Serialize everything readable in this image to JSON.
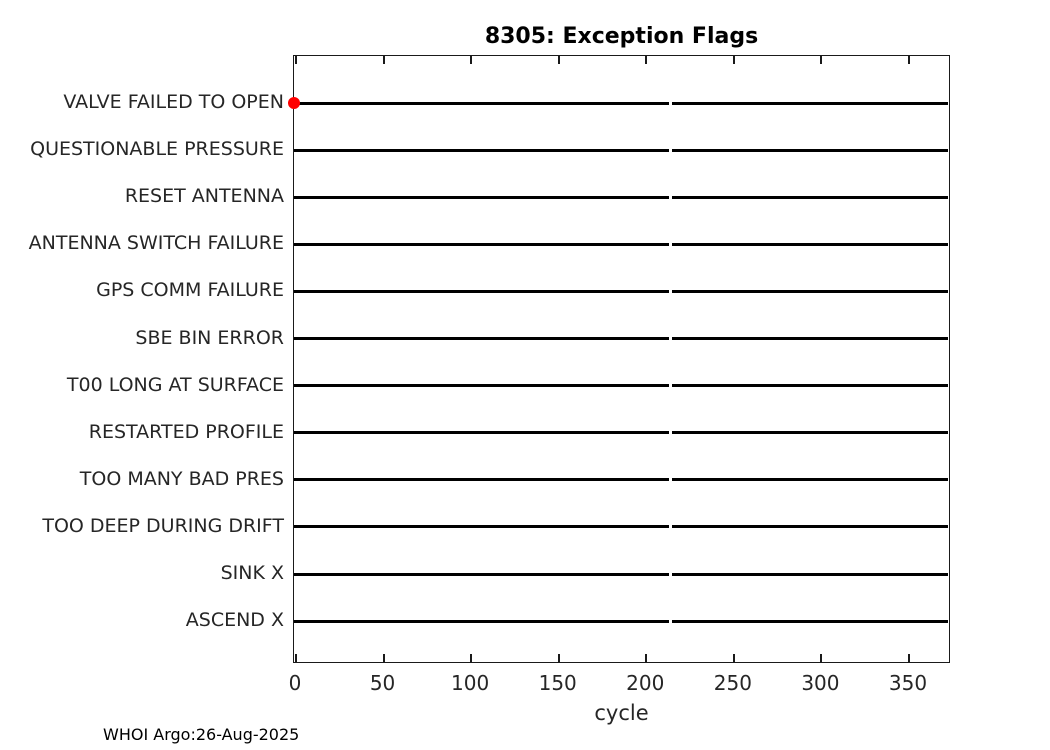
{
  "title": "8305: Exception Flags",
  "footer": "WHOI Argo:26-Aug-2025",
  "chart_data": {
    "type": "scatter",
    "title": "8305: Exception Flags",
    "xlabel": "cycle",
    "ylabel": "",
    "x_ticks": [
      0,
      50,
      100,
      150,
      200,
      250,
      300,
      350
    ],
    "xlim": [
      0,
      374
    ],
    "grid": false,
    "legend": "none",
    "categories": [
      "VALVE FAILED TO OPEN",
      "QUESTIONABLE PRESSURE",
      "RESET ANTENNA",
      "ANTENNA SWITCH FAILURE",
      "GPS COMM FAILURE",
      "SBE BIN ERROR",
      "T00 LONG AT SURFACE",
      "RESTARTED PROFILE",
      "TOO MANY BAD PRES",
      "TOO DEEP DURING DRIFT",
      "SINK X",
      "ASCEND X"
    ],
    "row_lines": {
      "description": "each category has a full-width horizontal black line with a small break",
      "gap_at_cycle": 214
    },
    "points": [
      {
        "category": "VALVE FAILED TO OPEN",
        "x": 0,
        "marker": "filled-circle"
      }
    ],
    "annotation": "WHOI Argo:26-Aug-2025",
    "colors": {
      "marker": "#ff0000",
      "row_line": "#000000",
      "axis": "#1a1a1a",
      "tick_text": "#262626",
      "title_text": "#000000",
      "background": "#ffffff"
    }
  }
}
